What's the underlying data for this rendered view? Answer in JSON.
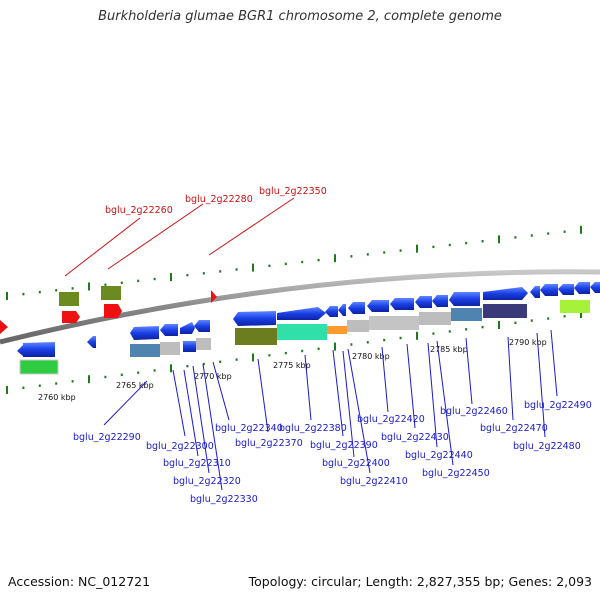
{
  "title": "Burkholderia glumae BGR1 chromosome 2, complete genome",
  "footer": {
    "accession": "Accession: NC_012721",
    "info": "Topology: circular; Length: 2,827,355 bp; Genes: 2,093"
  },
  "colors": {
    "gene_label": "#1a1acc",
    "highlight_label": "#cc1111",
    "gene_arrow": "#1a3fe6",
    "tick": "#1f7a1f",
    "backbone": "#8a8a8a"
  },
  "scale_labels": [
    "2760 kbp",
    "2765 kbp",
    "2770 kbp",
    "2775 kbp",
    "2780 kbp",
    "2785 kbp",
    "2790 kbp"
  ],
  "highlight_genes": [
    "bglu_2g22260",
    "bglu_2g22280",
    "bglu_2g22350"
  ],
  "genes": [
    "bglu_2g22290",
    "bglu_2g22300",
    "bglu_2g22310",
    "bglu_2g22320",
    "bglu_2g22330",
    "bglu_2g22340",
    "bglu_2g22370",
    "bglu_2g22380",
    "bglu_2g22390",
    "bglu_2g22400",
    "bglu_2g22410",
    "bglu_2g22420",
    "bglu_2g22430",
    "bglu_2g22440",
    "bglu_2g22450",
    "bglu_2g22460",
    "bglu_2g22470",
    "bglu_2g22480",
    "bglu_2g22490"
  ]
}
